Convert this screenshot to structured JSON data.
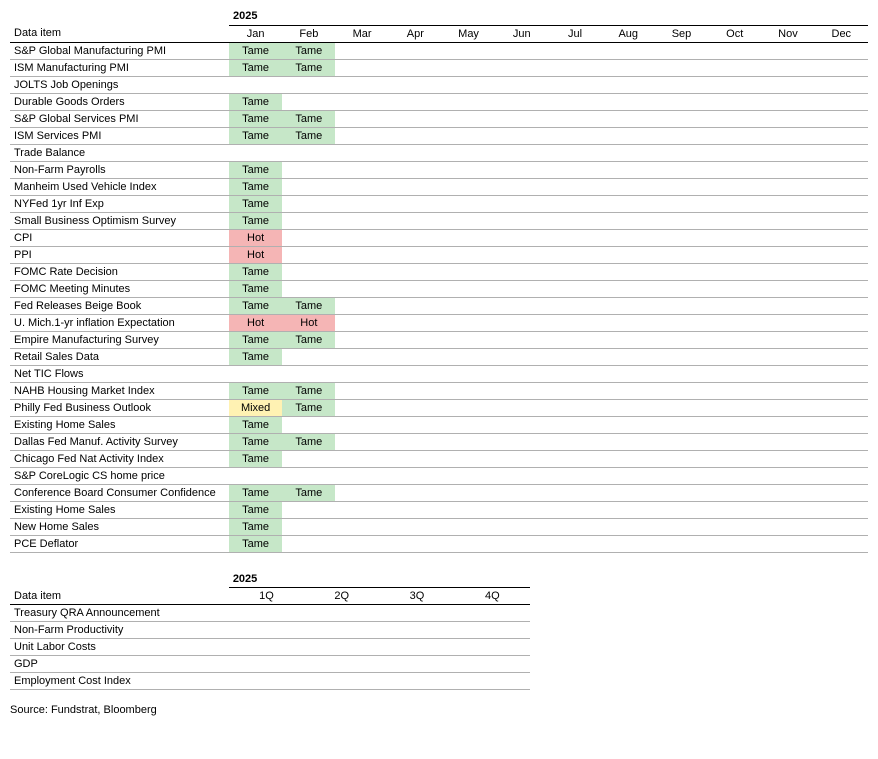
{
  "year_label": "2025",
  "months": [
    "Jan",
    "Feb",
    "Mar",
    "Apr",
    "May",
    "Jun",
    "Jul",
    "Aug",
    "Sep",
    "Oct",
    "Nov",
    "Dec"
  ],
  "label_header": "Data item",
  "colors": {
    "tame": "#c6e7c8",
    "hot": "#f5b5b5",
    "mixed": "#fff2b3"
  },
  "col_widths": {
    "label": 218,
    "month": 53
  },
  "rows": [
    {
      "name": "S&P Global Manufacturing PMI",
      "vals": [
        "Tame",
        "Tame",
        "",
        "",
        "",
        "",
        "",
        "",
        "",
        "",
        "",
        ""
      ]
    },
    {
      "name": "ISM Manufacturing PMI",
      "vals": [
        "Tame",
        "Tame",
        "",
        "",
        "",
        "",
        "",
        "",
        "",
        "",
        "",
        ""
      ]
    },
    {
      "name": "JOLTS Job Openings",
      "vals": [
        "",
        "",
        "",
        "",
        "",
        "",
        "",
        "",
        "",
        "",
        "",
        ""
      ]
    },
    {
      "name": "Durable Goods Orders",
      "vals": [
        "Tame",
        "",
        "",
        "",
        "",
        "",
        "",
        "",
        "",
        "",
        "",
        ""
      ]
    },
    {
      "name": "S&P Global Services PMI",
      "vals": [
        "Tame",
        "Tame",
        "",
        "",
        "",
        "",
        "",
        "",
        "",
        "",
        "",
        ""
      ]
    },
    {
      "name": "ISM Services PMI",
      "vals": [
        "Tame",
        "Tame",
        "",
        "",
        "",
        "",
        "",
        "",
        "",
        "",
        "",
        ""
      ]
    },
    {
      "name": "Trade Balance",
      "vals": [
        "",
        "",
        "",
        "",
        "",
        "",
        "",
        "",
        "",
        "",
        "",
        ""
      ]
    },
    {
      "name": "Non-Farm Payrolls",
      "vals": [
        "Tame",
        "",
        "",
        "",
        "",
        "",
        "",
        "",
        "",
        "",
        "",
        ""
      ]
    },
    {
      "name": "Manheim Used Vehicle Index",
      "vals": [
        "Tame",
        "",
        "",
        "",
        "",
        "",
        "",
        "",
        "",
        "",
        "",
        ""
      ]
    },
    {
      "name": "NYFed 1yr Inf Exp",
      "vals": [
        "Tame",
        "",
        "",
        "",
        "",
        "",
        "",
        "",
        "",
        "",
        "",
        ""
      ]
    },
    {
      "name": "Small Business Optimism Survey",
      "vals": [
        "Tame",
        "",
        "",
        "",
        "",
        "",
        "",
        "",
        "",
        "",
        "",
        ""
      ]
    },
    {
      "name": "CPI",
      "vals": [
        "Hot",
        "",
        "",
        "",
        "",
        "",
        "",
        "",
        "",
        "",
        "",
        ""
      ]
    },
    {
      "name": "PPI",
      "vals": [
        "Hot",
        "",
        "",
        "",
        "",
        "",
        "",
        "",
        "",
        "",
        "",
        ""
      ]
    },
    {
      "name": "FOMC Rate Decision",
      "vals": [
        "Tame",
        "",
        "",
        "",
        "",
        "",
        "",
        "",
        "",
        "",
        "",
        ""
      ]
    },
    {
      "name": "FOMC Meeting Minutes",
      "vals": [
        "Tame",
        "",
        "",
        "",
        "",
        "",
        "",
        "",
        "",
        "",
        "",
        ""
      ]
    },
    {
      "name": "Fed Releases Beige Book",
      "vals": [
        "Tame",
        "Tame",
        "",
        "",
        "",
        "",
        "",
        "",
        "",
        "",
        "",
        ""
      ]
    },
    {
      "name": "U. Mich.1-yr  inflation Expectation",
      "vals": [
        "Hot",
        "Hot",
        "",
        "",
        "",
        "",
        "",
        "",
        "",
        "",
        "",
        ""
      ]
    },
    {
      "name": "Empire Manufacturing Survey",
      "vals": [
        "Tame",
        "Tame",
        "",
        "",
        "",
        "",
        "",
        "",
        "",
        "",
        "",
        ""
      ]
    },
    {
      "name": "Retail Sales Data",
      "vals": [
        "Tame",
        "",
        "",
        "",
        "",
        "",
        "",
        "",
        "",
        "",
        "",
        ""
      ]
    },
    {
      "name": "Net TIC Flows",
      "vals": [
        "",
        "",
        "",
        "",
        "",
        "",
        "",
        "",
        "",
        "",
        "",
        ""
      ]
    },
    {
      "name": "NAHB Housing Market Index",
      "vals": [
        "Tame",
        "Tame",
        "",
        "",
        "",
        "",
        "",
        "",
        "",
        "",
        "",
        ""
      ]
    },
    {
      "name": "Philly Fed Business Outlook",
      "vals": [
        "Mixed",
        "Tame",
        "",
        "",
        "",
        "",
        "",
        "",
        "",
        "",
        "",
        ""
      ]
    },
    {
      "name": "Existing Home Sales",
      "vals": [
        "Tame",
        "",
        "",
        "",
        "",
        "",
        "",
        "",
        "",
        "",
        "",
        ""
      ]
    },
    {
      "name": "Dallas Fed Manuf. Activity Survey",
      "vals": [
        "Tame",
        "Tame",
        "",
        "",
        "",
        "",
        "",
        "",
        "",
        "",
        "",
        ""
      ]
    },
    {
      "name": "Chicago Fed Nat Activity Index",
      "vals": [
        "Tame",
        "",
        "",
        "",
        "",
        "",
        "",
        "",
        "",
        "",
        "",
        ""
      ]
    },
    {
      "name": "S&P CoreLogic CS home price",
      "vals": [
        "",
        "",
        "",
        "",
        "",
        "",
        "",
        "",
        "",
        "",
        "",
        ""
      ]
    },
    {
      "name": "Conference Board Consumer Confidence",
      "vals": [
        "Tame",
        "Tame",
        "",
        "",
        "",
        "",
        "",
        "",
        "",
        "",
        "",
        ""
      ]
    },
    {
      "name": "Existing Home Sales",
      "vals": [
        "Tame",
        "",
        "",
        "",
        "",
        "",
        "",
        "",
        "",
        "",
        "",
        ""
      ]
    },
    {
      "name": "New Home Sales",
      "vals": [
        "Tame",
        "",
        "",
        "",
        "",
        "",
        "",
        "",
        "",
        "",
        "",
        ""
      ]
    },
    {
      "name": "PCE Deflator",
      "vals": [
        "Tame",
        "",
        "",
        "",
        "",
        "",
        "",
        "",
        "",
        "",
        "",
        ""
      ]
    }
  ],
  "quarters_label": "2025",
  "quarters": [
    "1Q",
    "2Q",
    "3Q",
    "4Q"
  ],
  "q_label_header": "Data item",
  "q_col_widths": {
    "label": 218,
    "q": 75
  },
  "q_rows": [
    {
      "name": "Treasury QRA Announcement"
    },
    {
      "name": "Non-Farm Productivity"
    },
    {
      "name": "Unit Labor Costs"
    },
    {
      "name": "GDP"
    },
    {
      "name": "Employment Cost Index"
    }
  ],
  "source": "Source: Fundstrat, Bloomberg"
}
